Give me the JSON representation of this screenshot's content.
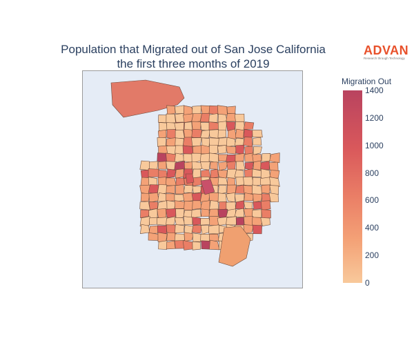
{
  "title_line1": "Population that Migrated out of San Jose California",
  "title_line2": "the first three months of 2019",
  "logo": {
    "name": "ADVAN",
    "tagline": "Research through Technology"
  },
  "colorbar": {
    "title": "Migration Out",
    "ticks": [
      "1400",
      "1200",
      "1000",
      "800",
      "600",
      "400",
      "200",
      "0"
    ],
    "range": [
      0,
      1400
    ],
    "colors": [
      "#f8c99b",
      "#f4a277",
      "#ea7e66",
      "#d9585b",
      "#b9435f"
    ]
  },
  "chart_data": {
    "type": "choropleth",
    "title": "Population that Migrated out of San Jose California the first three months of 2019",
    "colorbar_title": "Migration Out",
    "value_range": [
      0,
      1400
    ],
    "colorscale": [
      "#f8c99b",
      "#f4a277",
      "#ea7e66",
      "#d9585b",
      "#b9435f"
    ]
  }
}
